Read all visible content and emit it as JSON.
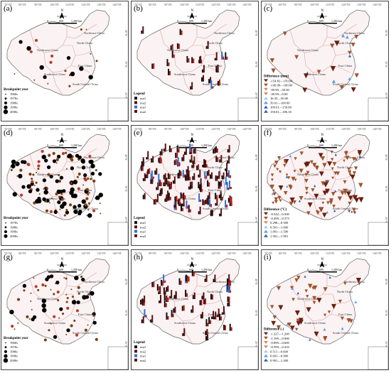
{
  "lon_labels": [
    "70°0'E",
    "80°0'E",
    "90°0'E",
    "100°0'E",
    "110°0'E",
    "120°0'E",
    "130°0'E",
    "140°0'E"
  ],
  "lat_labels": [
    "40°N",
    "30°N",
    "20°N"
  ],
  "north_label": "N",
  "scale_text": [
    "0",
    "600",
    "1,200 km"
  ],
  "regions": [
    "Northeast China",
    "North China",
    "Northwest China",
    "East China",
    "Southwest China",
    "South Central China"
  ],
  "panels": [
    {
      "label": "(a)",
      "legend_title": "Breakpoint year",
      "legend_items": [
        "1960s",
        "1970s",
        "1980s",
        "1990s",
        "2000s"
      ],
      "legend_type": "dots"
    },
    {
      "label": "(b)",
      "legend_title": "Legend",
      "legend_items": [
        "mu1",
        "mu2",
        "mu1",
        "mu2"
      ],
      "legend_type": "bars"
    },
    {
      "label": "(c)",
      "legend_title": "Difference (mm)",
      "legend_items": [
        "-154.82—150.00",
        "-149.99—100.00",
        "-99.99—50.00",
        "-49.99—0.00",
        "16.35—50.00",
        "50.01—100.00",
        "100.01—150.00",
        "150.01—186.16"
      ],
      "legend_type": "triangles"
    },
    {
      "label": "(d)",
      "legend_title": "Breakpoint year",
      "legend_items": [
        "1970s",
        "1980s",
        "1990s",
        "2000s"
      ],
      "legend_type": "dots"
    },
    {
      "label": "(e)",
      "legend_title": "Legend",
      "legend_items": [
        "mu1",
        "mu2",
        "mu1",
        "mu2"
      ],
      "legend_type": "bars"
    },
    {
      "label": "(f)",
      "legend_title": "Difference (°C)",
      "legend_items": [
        "-0.542—0.500",
        "-0.499—0.373",
        "0.298—0.500",
        "0.501—1.000",
        "1.001—1.500",
        "1.501—1.901"
      ],
      "legend_type": "triangles"
    },
    {
      "label": "(g)",
      "legend_title": "Breakpoint year",
      "legend_items": [
        "1960s",
        "1970s",
        "1980s",
        "1990s",
        "2000s"
      ],
      "legend_type": "dots"
    },
    {
      "label": "(h)",
      "legend_title": "Legend",
      "legend_items": [
        "mu1",
        "mu2",
        "mu1",
        "mu2"
      ],
      "legend_type": "bars"
    },
    {
      "label": "(i)",
      "legend_title": "Difference (-)",
      "legend_items": [
        "-1.327—1.200",
        "-1.199—0.900",
        "-0.899—0.600",
        "-0.599—0.410",
        "0.511—0.600",
        "0.601—0.900",
        "0.901—1.200"
      ],
      "legend_type": "triangles"
    }
  ],
  "colors": {
    "china_fill": "#fbf3f3",
    "boundary": "#d9a3a3",
    "outline": "#666666",
    "dot": "#000000",
    "dot_brown": "#7b3f12",
    "dot_red": "#c0392b",
    "bar_black": "#111111",
    "bar_darkred": "#5b0f0f",
    "bar_red": "#b71c1c",
    "bar_blue": "#2f6fd6",
    "tri_neg_dark": "#6d1d0e",
    "tri_neg": "#a0522d",
    "tri_neg_light": "#d98b5f",
    "tri_pos_light": "#9ec9f0",
    "tri_pos": "#5a9be6",
    "tri_pos_dark": "#1f5fbf"
  }
}
